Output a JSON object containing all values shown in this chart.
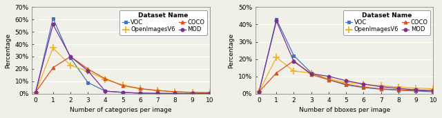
{
  "left_chart": {
    "xlabel": "Number of categories per image",
    "ylabel": "Percentage",
    "xlim": [
      -0.2,
      10
    ],
    "ylim": [
      0,
      0.7
    ],
    "yticks": [
      0,
      0.1,
      0.2,
      0.3,
      0.4,
      0.5,
      0.6,
      0.7
    ],
    "ytick_labels": [
      "0%",
      "10%",
      "20%",
      "30%",
      "40%",
      "50%",
      "60%",
      "70%"
    ],
    "xticks": [
      0,
      1,
      2,
      3,
      4,
      5,
      6,
      7,
      8,
      9,
      10
    ],
    "series": {
      "VOC": {
        "x": [
          0,
          1,
          2,
          3,
          4,
          5,
          6,
          7,
          8,
          9,
          10
        ],
        "y": [
          0.01,
          0.61,
          0.29,
          0.09,
          0.02,
          0.01,
          0.003,
          0.002,
          0.001,
          0.001,
          0.001
        ],
        "color": "#4472C4",
        "marker": "s",
        "linestyle": "-"
      },
      "OpenImagesV6": {
        "x": [
          0,
          1,
          2,
          3,
          4,
          5,
          6,
          7,
          8,
          9,
          10
        ],
        "y": [
          0.01,
          0.37,
          0.23,
          0.18,
          0.115,
          0.07,
          0.04,
          0.025,
          0.015,
          0.01,
          0.007
        ],
        "color": "#EDB120",
        "marker": "+",
        "linestyle": "-"
      },
      "COCO": {
        "x": [
          0,
          1,
          2,
          3,
          4,
          5,
          6,
          7,
          8,
          9,
          10
        ],
        "y": [
          0.01,
          0.21,
          0.3,
          0.2,
          0.12,
          0.065,
          0.04,
          0.025,
          0.015,
          0.01,
          0.007
        ],
        "color": "#D95319",
        "marker": "^",
        "linestyle": "-"
      },
      "MOD": {
        "x": [
          0,
          1,
          2,
          3,
          4,
          5,
          6,
          7,
          8,
          9,
          10
        ],
        "y": [
          0.01,
          0.56,
          0.3,
          0.185,
          0.02,
          0.01,
          0.004,
          0.002,
          0.001,
          0.001,
          0.001
        ],
        "color": "#7E2F8E",
        "marker": "o",
        "linestyle": "-"
      }
    },
    "legend_title": "Dataset Name"
  },
  "right_chart": {
    "xlabel": "Number of bboxes per image",
    "ylabel": "Percentage",
    "xlim": [
      -0.2,
      10
    ],
    "ylim": [
      0,
      0.5
    ],
    "yticks": [
      0,
      0.1,
      0.2,
      0.3,
      0.4,
      0.5
    ],
    "ytick_labels": [
      "0%",
      "10%",
      "20%",
      "30%",
      "40%",
      "50%"
    ],
    "xticks": [
      0,
      1,
      2,
      3,
      4,
      5,
      6,
      7,
      8,
      9,
      10
    ],
    "series": {
      "VOC": {
        "x": [
          0,
          1,
          2,
          3,
          4,
          5,
          6,
          7,
          8,
          9,
          10
        ],
        "y": [
          0.01,
          0.43,
          0.22,
          0.12,
          0.08,
          0.05,
          0.035,
          0.025,
          0.02,
          0.015,
          0.01
        ],
        "color": "#4472C4",
        "marker": "s",
        "linestyle": "-"
      },
      "OpenImagesV6": {
        "x": [
          0,
          1,
          2,
          3,
          4,
          5,
          6,
          7,
          8,
          9,
          10
        ],
        "y": [
          0.01,
          0.21,
          0.13,
          0.12,
          0.085,
          0.065,
          0.055,
          0.045,
          0.038,
          0.032,
          0.028
        ],
        "color": "#EDB120",
        "marker": "+",
        "linestyle": "-"
      },
      "COCO": {
        "x": [
          0,
          1,
          2,
          3,
          4,
          5,
          6,
          7,
          8,
          9,
          10
        ],
        "y": [
          0.01,
          0.12,
          0.19,
          0.11,
          0.08,
          0.055,
          0.038,
          0.028,
          0.022,
          0.018,
          0.015
        ],
        "color": "#D95319",
        "marker": "^",
        "linestyle": "-"
      },
      "MOD": {
        "x": [
          0,
          1,
          2,
          3,
          4,
          5,
          6,
          7,
          8,
          9,
          10
        ],
        "y": [
          0.01,
          0.42,
          0.185,
          0.115,
          0.1,
          0.075,
          0.055,
          0.04,
          0.03,
          0.022,
          0.017
        ],
        "color": "#7E2F8E",
        "marker": "o",
        "linestyle": "-"
      }
    },
    "legend_title": "Dataset Name"
  },
  "axes_facecolor": "#F0F0E8",
  "fig_facecolor": "#F0F0E8",
  "grid_color": "#FFFFFF",
  "font_size": 6.5,
  "marker_size": 3.5,
  "linewidth": 0.9
}
